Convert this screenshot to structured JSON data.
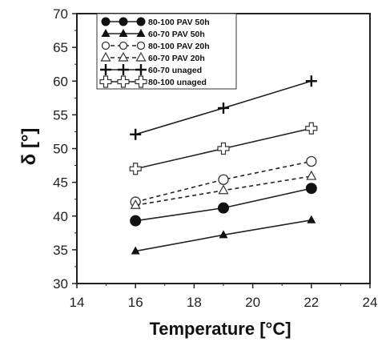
{
  "chart_data": {
    "type": "line",
    "xlabel": "Temperature [°C]",
    "ylabel": "δ [°]",
    "xlim": [
      14,
      24
    ],
    "ylim": [
      30,
      70
    ],
    "x_ticks": [
      14,
      16,
      18,
      20,
      22,
      24
    ],
    "y_ticks": [
      30,
      35,
      40,
      45,
      50,
      55,
      60,
      65,
      70
    ],
    "x_tick_labels": [
      "14",
      "16",
      "18",
      "20",
      "22",
      "24"
    ],
    "y_tick_labels": [
      "30",
      "35",
      "40",
      "45",
      "50",
      "55",
      "60",
      "65",
      "70"
    ],
    "grid": false,
    "legend_position": "top-left",
    "x": [
      16,
      19,
      22
    ],
    "series": [
      {
        "name": "80-100 PAV 50h",
        "values": [
          39.3,
          41.2,
          44.1
        ],
        "marker": "circle-filled",
        "dash": "solid"
      },
      {
        "name": "60-70 PAV 50h",
        "values": [
          34.8,
          37.2,
          39.4
        ],
        "marker": "triangle-filled",
        "dash": "solid"
      },
      {
        "name": "80-100 PAV 20h",
        "values": [
          42.1,
          45.4,
          48.1
        ],
        "marker": "circle-open",
        "dash": "dashed"
      },
      {
        "name": "60-70 PAV 20h",
        "values": [
          41.6,
          43.8,
          45.9
        ],
        "marker": "triangle-open",
        "dash": "dashed"
      },
      {
        "name": "60-70 unaged",
        "values": [
          52.1,
          56.0,
          60.0
        ],
        "marker": "plus",
        "dash": "solid"
      },
      {
        "name": "80-100 unaged",
        "values": [
          47.0,
          50.0,
          53.0
        ],
        "marker": "plus-open",
        "dash": "solid"
      }
    ]
  }
}
